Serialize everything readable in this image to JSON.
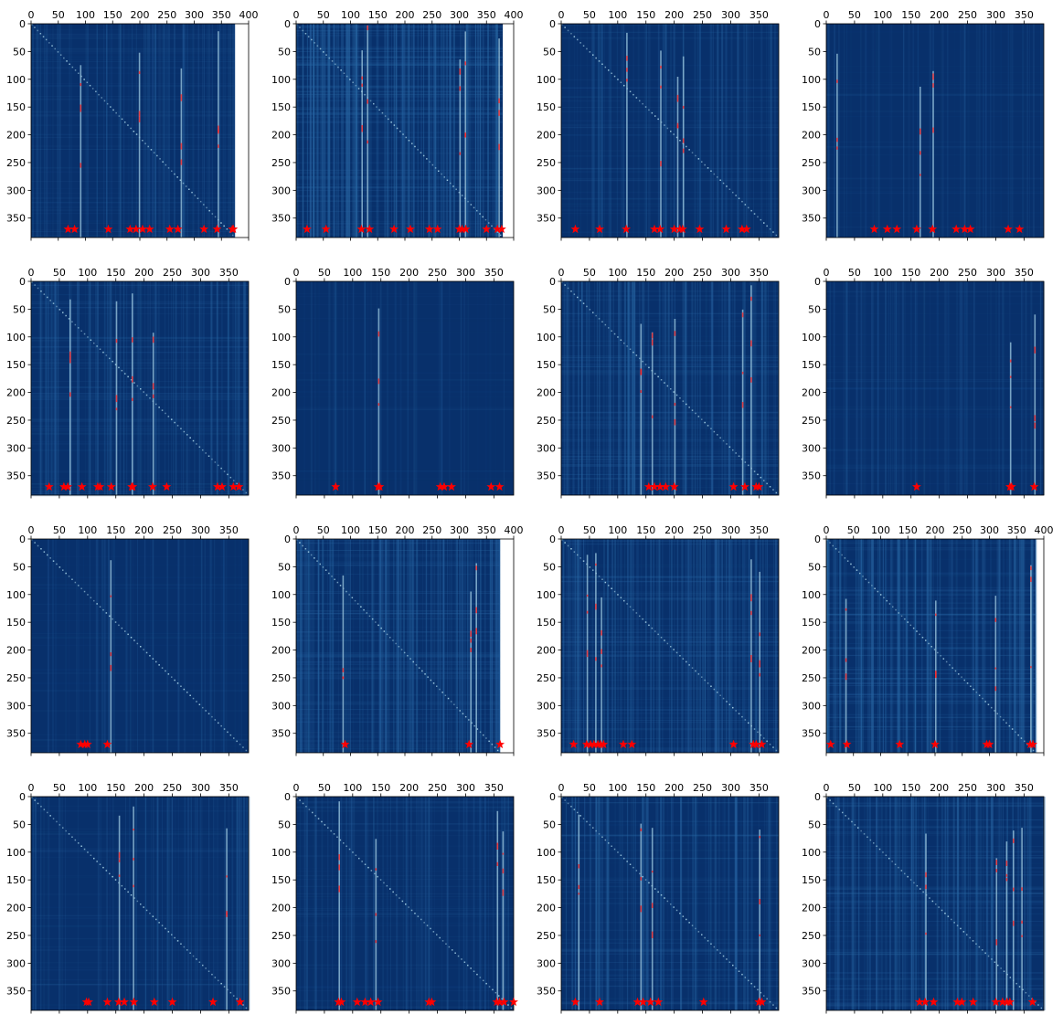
{
  "colors": {
    "background": "#08306b",
    "stripe_light": "#2a6aa8",
    "stripe_bright": "#9ecae1",
    "hot": "#ff2a2a",
    "star": "#ff0000",
    "axis": "#000000"
  },
  "chart_data": [
    {
      "type": "heatmap",
      "panel": 1,
      "xticks": [
        0,
        50,
        100,
        150,
        200,
        250,
        300,
        350,
        400
      ],
      "yticks": [
        0,
        50,
        100,
        150,
        200,
        250,
        300,
        350
      ],
      "xlim": [
        0,
        400
      ],
      "ylim": [
        0,
        385
      ],
      "data_xmax": 375,
      "stars": [
        68,
        80,
        142,
        182,
        193,
        205,
        218,
        255,
        270,
        318,
        342,
        370,
        372
      ],
      "columns": [
        90,
        198,
        275,
        343
      ],
      "diagonal": true,
      "intensity": 0.35
    },
    {
      "type": "heatmap",
      "panel": 2,
      "xticks": [
        0,
        50,
        100,
        150,
        200,
        250,
        300,
        350,
        400
      ],
      "yticks": [
        0,
        50,
        100,
        150,
        200,
        250,
        300,
        350
      ],
      "xlim": [
        0,
        400
      ],
      "ylim": [
        0,
        385
      ],
      "data_xmax": 380,
      "stars": [
        20,
        55,
        120,
        135,
        180,
        210,
        245,
        260,
        300,
        305,
        312,
        350,
        370,
        378
      ],
      "columns": [
        120,
        130,
        300,
        310,
        372
      ],
      "diagonal": true,
      "intensity": 0.75
    },
    {
      "type": "heatmap",
      "panel": 3,
      "xticks": [
        0,
        50,
        100,
        150,
        200,
        250,
        300,
        350
      ],
      "yticks": [
        0,
        50,
        100,
        150,
        200,
        250,
        300,
        350
      ],
      "xlim": [
        0,
        385
      ],
      "ylim": [
        0,
        385
      ],
      "data_xmax": 385,
      "stars": [
        25,
        68,
        115,
        165,
        175,
        200,
        210,
        215,
        245,
        292,
        320,
        328
      ],
      "columns": [
        115,
        175,
        205,
        215
      ],
      "diagonal": true,
      "intensity": 0.3
    },
    {
      "type": "heatmap",
      "panel": 4,
      "xticks": [
        0,
        50,
        100,
        150,
        200,
        250,
        300,
        350
      ],
      "yticks": [
        0,
        50,
        100,
        150,
        200,
        250,
        300,
        350
      ],
      "xlim": [
        0,
        385
      ],
      "ylim": [
        0,
        385
      ],
      "data_xmax": 385,
      "stars": [
        85,
        108,
        125,
        160,
        188,
        230,
        245,
        255,
        322,
        342
      ],
      "columns": [
        18,
        165,
        188
      ],
      "diagonal": false,
      "intensity": 0.15
    },
    {
      "type": "heatmap",
      "panel": 5,
      "xticks": [
        0,
        50,
        100,
        150,
        200,
        250,
        300,
        350
      ],
      "yticks": [
        0,
        50,
        100,
        150,
        200,
        250,
        300,
        350
      ],
      "xlim": [
        0,
        385
      ],
      "ylim": [
        0,
        385
      ],
      "data_xmax": 385,
      "stars": [
        32,
        58,
        65,
        90,
        118,
        122,
        142,
        178,
        180,
        215,
        240,
        330,
        338,
        358,
        368
      ],
      "columns": [
        68,
        150,
        178,
        215
      ],
      "diagonal": true,
      "intensity": 0.45
    },
    {
      "type": "heatmap",
      "panel": 6,
      "xticks": [
        0,
        50,
        100,
        150,
        200,
        250,
        300,
        350
      ],
      "yticks": [
        0,
        50,
        100,
        150,
        200,
        250,
        300,
        350
      ],
      "xlim": [
        0,
        385
      ],
      "ylim": [
        0,
        385
      ],
      "data_xmax": 385,
      "stars": [
        70,
        145,
        148,
        255,
        262,
        275,
        345,
        360
      ],
      "columns": [
        145
      ],
      "diagonal": false,
      "intensity": 0.05
    },
    {
      "type": "heatmap",
      "panel": 7,
      "xticks": [
        0,
        50,
        100,
        150,
        200,
        250,
        300,
        350
      ],
      "yticks": [
        0,
        50,
        100,
        150,
        200,
        250,
        300,
        350
      ],
      "xlim": [
        0,
        385
      ],
      "ylim": [
        0,
        385
      ],
      "data_xmax": 385,
      "stars": [
        155,
        165,
        175,
        185,
        200,
        305,
        325,
        345,
        350
      ],
      "columns": [
        140,
        160,
        200,
        320,
        335
      ],
      "diagonal": true,
      "intensity": 0.55
    },
    {
      "type": "heatmap",
      "panel": 8,
      "xticks": [
        0,
        50,
        100,
        150,
        200,
        250,
        300,
        350
      ],
      "yticks": [
        0,
        50,
        100,
        150,
        200,
        250,
        300,
        350
      ],
      "xlim": [
        0,
        385
      ],
      "ylim": [
        0,
        385
      ],
      "data_xmax": 385,
      "stars": [
        160,
        325,
        328,
        368
      ],
      "columns": [
        325,
        368
      ],
      "diagonal": false,
      "intensity": 0.2
    },
    {
      "type": "heatmap",
      "panel": 9,
      "xticks": [
        0,
        50,
        100,
        150,
        200,
        250,
        300,
        350
      ],
      "yticks": [
        0,
        50,
        100,
        150,
        200,
        250,
        300,
        350
      ],
      "xlim": [
        0,
        385
      ],
      "ylim": [
        0,
        385
      ],
      "data_xmax": 385,
      "stars": [
        88,
        95,
        100,
        135
      ],
      "columns": [
        140
      ],
      "diagonal": true,
      "intensity": 0.1
    },
    {
      "type": "heatmap",
      "panel": 10,
      "xticks": [
        0,
        50,
        100,
        150,
        200,
        250,
        300,
        350,
        400
      ],
      "yticks": [
        0,
        50,
        100,
        150,
        200,
        250,
        300,
        350
      ],
      "xlim": [
        0,
        400
      ],
      "ylim": [
        0,
        385
      ],
      "data_xmax": 375,
      "stars": [
        90,
        318,
        375
      ],
      "columns": [
        85,
        320,
        330
      ],
      "diagonal": true,
      "intensity": 0.6
    },
    {
      "type": "heatmap",
      "panel": 11,
      "xticks": [
        0,
        50,
        100,
        150,
        200,
        250,
        300,
        350
      ],
      "yticks": [
        0,
        50,
        100,
        150,
        200,
        250,
        300,
        350
      ],
      "xlim": [
        0,
        385
      ],
      "ylim": [
        0,
        385
      ],
      "data_xmax": 385,
      "stars": [
        22,
        45,
        52,
        58,
        65,
        70,
        75,
        110,
        125,
        305,
        340,
        345,
        355
      ],
      "columns": [
        45,
        60,
        70,
        335,
        350
      ],
      "diagonal": true,
      "intensity": 0.6
    },
    {
      "type": "heatmap",
      "panel": 12,
      "xticks": [
        0,
        50,
        100,
        150,
        200,
        250,
        300,
        350,
        400
      ],
      "yticks": [
        0,
        50,
        100,
        150,
        200,
        250,
        300,
        350
      ],
      "xlim": [
        0,
        400
      ],
      "ylim": [
        0,
        385
      ],
      "data_xmax": 385,
      "stars": [
        8,
        38,
        135,
        200,
        295,
        300,
        375,
        380
      ],
      "columns": [
        35,
        200,
        310,
        375
      ],
      "diagonal": true,
      "intensity": 0.7
    },
    {
      "type": "heatmap",
      "panel": 13,
      "xticks": [
        0,
        50,
        100,
        150,
        200,
        250,
        300,
        350
      ],
      "yticks": [
        0,
        50,
        100,
        150,
        200,
        250,
        300,
        350
      ],
      "xlim": [
        0,
        385
      ],
      "ylim": [
        0,
        385
      ],
      "data_xmax": 385,
      "stars": [
        98,
        102,
        135,
        155,
        165,
        182,
        218,
        250,
        322,
        370
      ],
      "columns": [
        155,
        180,
        345
      ],
      "diagonal": true,
      "intensity": 0.25
    },
    {
      "type": "heatmap",
      "panel": 14,
      "xticks": [
        0,
        50,
        100,
        150,
        200,
        250,
        300,
        350
      ],
      "yticks": [
        0,
        50,
        100,
        150,
        200,
        250,
        300,
        350
      ],
      "xlim": [
        0,
        385
      ],
      "ylim": [
        0,
        385
      ],
      "data_xmax": 385,
      "stars": [
        75,
        80,
        108,
        122,
        132,
        145,
        235,
        240,
        355,
        360,
        368,
        385
      ],
      "columns": [
        75,
        140,
        355,
        365
      ],
      "diagonal": true,
      "intensity": 0.3
    },
    {
      "type": "heatmap",
      "panel": 15,
      "xticks": [
        0,
        50,
        100,
        150,
        200,
        250,
        300,
        350
      ],
      "yticks": [
        0,
        50,
        100,
        150,
        200,
        250,
        300,
        350
      ],
      "xlim": [
        0,
        385
      ],
      "ylim": [
        0,
        385
      ],
      "data_xmax": 385,
      "stars": [
        25,
        68,
        135,
        145,
        158,
        172,
        252,
        350,
        355
      ],
      "columns": [
        30,
        140,
        160,
        350
      ],
      "diagonal": true,
      "intensity": 0.5
    },
    {
      "type": "heatmap",
      "panel": 16,
      "xticks": [
        0,
        50,
        100,
        150,
        200,
        250,
        300,
        350
      ],
      "yticks": [
        0,
        50,
        100,
        150,
        200,
        250,
        300,
        350
      ],
      "xlim": [
        0,
        385
      ],
      "ylim": [
        0,
        385
      ],
      "data_xmax": 385,
      "stars": [
        165,
        175,
        190,
        232,
        240,
        260,
        300,
        312,
        320,
        325,
        365
      ],
      "columns": [
        175,
        300,
        318,
        330,
        345
      ],
      "diagonal": true,
      "intensity": 0.55
    }
  ]
}
